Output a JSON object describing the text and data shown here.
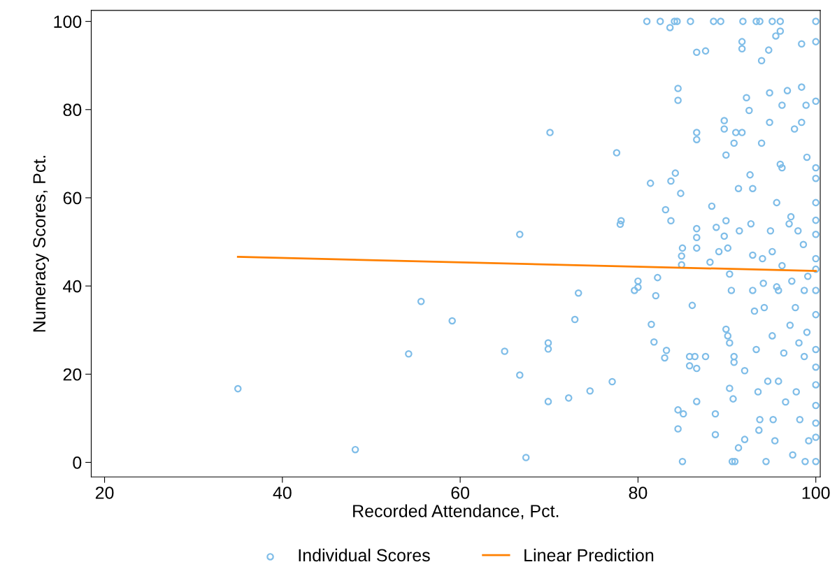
{
  "chart_data": {
    "type": "scatter",
    "xlabel": "Recorded Attendance, Pct.",
    "ylabel": "Numeracy Scores, Pct.",
    "xlim": [
      18.5,
      100.5
    ],
    "xticks": [
      20,
      40,
      60,
      80,
      100
    ],
    "ylim": [
      -3.3,
      102.5
    ],
    "yticks": [
      0,
      20,
      40,
      60,
      80,
      100
    ],
    "grid": false,
    "legend": "bottom",
    "marker": "circle",
    "series": [
      {
        "name": "Individual Scores",
        "color": "#7fbde8",
        "x": [
          35.0,
          48.2,
          54.2,
          55.6,
          59.1,
          65.0,
          66.7,
          66.7,
          67.4,
          69.9,
          69.9,
          69.9,
          70.1,
          72.2,
          72.9,
          73.3,
          74.6,
          77.1,
          77.6,
          78.0,
          78.1,
          79.6,
          80.0,
          80.0,
          81.0,
          81.4,
          81.5,
          81.8,
          82.0,
          82.2,
          82.5,
          83.0,
          83.1,
          83.2,
          83.6,
          83.7,
          83.7,
          84.1,
          84.2,
          84.4,
          84.5,
          84.5,
          84.5,
          84.5,
          84.8,
          84.9,
          85.0,
          84.9,
          85.1,
          85.0,
          85.9,
          86.1,
          85.8,
          85.8,
          86.4,
          86.6,
          86.6,
          86.6,
          86.6,
          86.6,
          86.6,
          86.6,
          86.6,
          87.6,
          87.6,
          88.1,
          88.3,
          88.5,
          88.7,
          88.7,
          88.8,
          89.1,
          89.3,
          89.7,
          89.9,
          90.1,
          89.7,
          89.7,
          89.9,
          89.9,
          90.1,
          90.3,
          90.3,
          90.5,
          90.3,
          90.7,
          90.6,
          90.9,
          90.8,
          90.8,
          90.8,
          91.0,
          91.3,
          91.4,
          91.7,
          91.3,
          91.8,
          91.7,
          91.7,
          92.0,
          92.0,
          92.2,
          92.5,
          92.6,
          92.9,
          92.7,
          92.9,
          92.9,
          93.1,
          93.3,
          93.3,
          93.5,
          93.6,
          93.7,
          93.7,
          93.9,
          93.9,
          94.0,
          94.1,
          94.2,
          94.4,
          94.6,
          94.7,
          94.8,
          94.8,
          94.9,
          95.1,
          95.1,
          95.1,
          95.2,
          95.4,
          95.5,
          95.6,
          95.6,
          95.8,
          95.8,
          96.0,
          96.0,
          96.0,
          96.2,
          96.2,
          96.2,
          96.4,
          96.6,
          96.8,
          97.0,
          97.1,
          97.2,
          97.3,
          97.4,
          97.6,
          97.7,
          97.8,
          98.0,
          98.1,
          98.2,
          98.4,
          98.4,
          98.4,
          98.6,
          98.7,
          98.7,
          98.8,
          98.9,
          99.0,
          99.1,
          99.0,
          99.2,
          100,
          100,
          100,
          100,
          100,
          100,
          100,
          100,
          100,
          100,
          100,
          100,
          100,
          100,
          100,
          100,
          100,
          100,
          100
        ],
        "values": [
          16.7,
          2.9,
          24.6,
          36.5,
          32.1,
          25.2,
          19.8,
          51.7,
          1.1,
          27.1,
          25.7,
          13.8,
          74.8,
          14.6,
          32.4,
          38.4,
          16.2,
          18.3,
          70.2,
          54.0,
          54.8,
          39.0,
          41.1,
          39.7,
          100,
          63.3,
          31.3,
          27.3,
          37.8,
          41.9,
          100,
          23.7,
          57.3,
          25.4,
          98.6,
          63.8,
          54.8,
          100,
          65.6,
          100,
          84.8,
          82.1,
          11.9,
          7.6,
          61.0,
          46.8,
          48.6,
          44.8,
          11.0,
          0.2,
          100,
          35.6,
          24.0,
          21.9,
          24.0,
          53.0,
          51.0,
          48.6,
          74.8,
          73.2,
          21.3,
          13.8,
          93.0,
          93.3,
          24.0,
          45.4,
          58.1,
          100,
          11.0,
          6.3,
          53.3,
          47.8,
          100,
          51.3,
          30.2,
          28.7,
          77.5,
          75.6,
          69.7,
          54.8,
          48.6,
          27.1,
          42.7,
          39.0,
          16.8,
          14.4,
          0.2,
          0.2,
          24.0,
          22.7,
          72.4,
          74.8,
          62.1,
          52.5,
          74.8,
          3.3,
          100,
          95.4,
          93.8,
          20.8,
          5.2,
          82.7,
          79.8,
          65.2,
          62.1,
          54.1,
          47.0,
          39.0,
          34.3,
          25.6,
          100,
          16.0,
          7.3,
          9.7,
          100,
          91.1,
          72.4,
          46.2,
          40.6,
          35.1,
          0.2,
          18.4,
          93.5,
          83.8,
          77.1,
          52.5,
          100,
          47.8,
          28.7,
          9.7,
          4.9,
          96.7,
          58.9,
          39.8,
          18.4,
          39.0,
          100,
          97.8,
          67.6,
          81.0,
          66.8,
          44.6,
          24.8,
          13.7,
          84.3,
          54.1,
          31.1,
          55.7,
          41.1,
          1.7,
          75.6,
          35.1,
          16.0,
          52.5,
          27.1,
          9.7,
          94.9,
          85.1,
          77.1,
          49.4,
          39.0,
          24.0,
          0.2,
          81.0,
          69.2,
          42.2,
          29.5,
          4.9,
          100,
          95.4,
          81.9,
          66.8,
          64.4,
          58.9,
          54.9,
          51.7,
          46.2,
          43.8,
          39.0,
          33.5,
          25.6,
          21.6,
          17.6,
          12.9,
          8.9,
          5.7,
          0.2
        ]
      },
      {
        "name": "Linear Prediction",
        "color": "#ff8000",
        "type": "line",
        "marker": "none",
        "x": [
          35,
          100
        ],
        "values": [
          46.6,
          43.4
        ]
      }
    ]
  }
}
